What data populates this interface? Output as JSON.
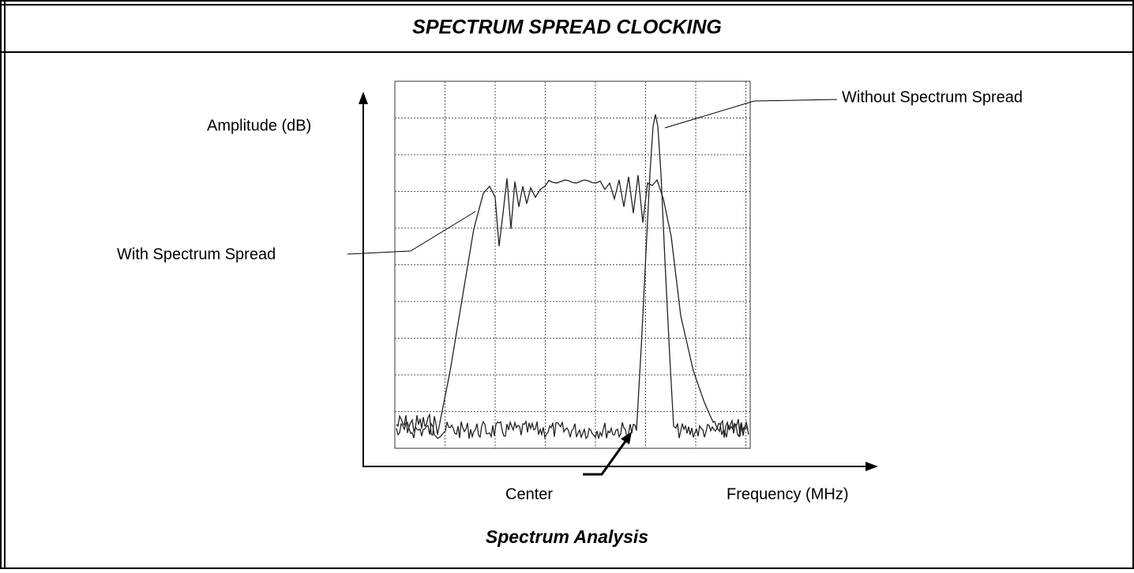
{
  "header": {
    "title": "SPECTRUM SPREAD CLOCKING"
  },
  "figure": {
    "y_axis_label": "Amplitude (dB)",
    "x_axis_label": "Frequency (MHz)",
    "annotations": {
      "without_spread": "Without Spectrum Spread",
      "with_spread": "With Spectrum Spread",
      "center": "Center"
    },
    "caption": "Spectrum Analysis"
  }
}
